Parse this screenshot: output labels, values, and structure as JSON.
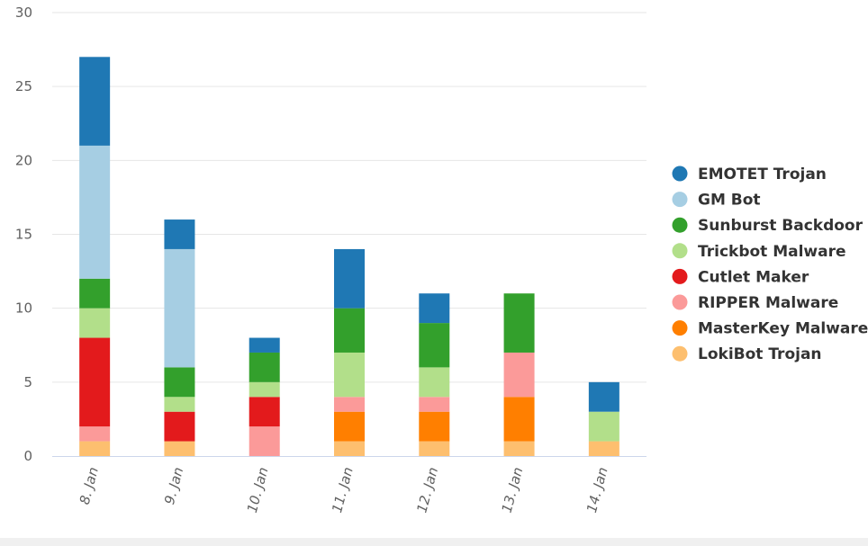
{
  "chart_data": {
    "type": "bar",
    "stacked": true,
    "title": "",
    "xlabel": "",
    "ylabel": "",
    "ylim": [
      0,
      30
    ],
    "yticks": [
      0,
      5,
      10,
      15,
      20,
      25,
      30
    ],
    "grid": true,
    "legend_position": "right",
    "categories": [
      "8. Jan",
      "9. Jan",
      "10. Jan",
      "11. Jan",
      "12. Jan",
      "13. Jan",
      "14. Jan"
    ],
    "series": [
      {
        "name": "LokiBot Trojan",
        "color": "#fdbf6f",
        "values": [
          1,
          1,
          0,
          1,
          1,
          1,
          1
        ]
      },
      {
        "name": "MasterKey Malware",
        "color": "#ff7f00",
        "values": [
          0,
          0,
          0,
          2,
          2,
          3,
          0
        ]
      },
      {
        "name": "RIPPER Malware",
        "color": "#fb9a99",
        "values": [
          1,
          0,
          2,
          1,
          1,
          3,
          0
        ]
      },
      {
        "name": "Cutlet Maker",
        "color": "#e31a1c",
        "values": [
          6,
          2,
          2,
          0,
          0,
          0,
          0
        ]
      },
      {
        "name": "Trickbot Malware",
        "color": "#b2df8a",
        "values": [
          2,
          1,
          1,
          3,
          2,
          0,
          2
        ]
      },
      {
        "name": "Sunburst Backdoor",
        "color": "#33a02c",
        "values": [
          2,
          2,
          2,
          3,
          3,
          4,
          0
        ]
      },
      {
        "name": "GM Bot",
        "color": "#a6cee3",
        "values": [
          9,
          8,
          0,
          0,
          0,
          0,
          0
        ]
      },
      {
        "name": "EMOTET Trojan",
        "color": "#1f78b4",
        "values": [
          6,
          2,
          1,
          4,
          2,
          0,
          2
        ]
      }
    ],
    "legend_order": [
      "EMOTET Trojan",
      "GM Bot",
      "Sunburst Backdoor",
      "Trickbot Malware",
      "Cutlet Maker",
      "RIPPER Malware",
      "MasterKey Malware",
      "LokiBot Trojan"
    ]
  }
}
